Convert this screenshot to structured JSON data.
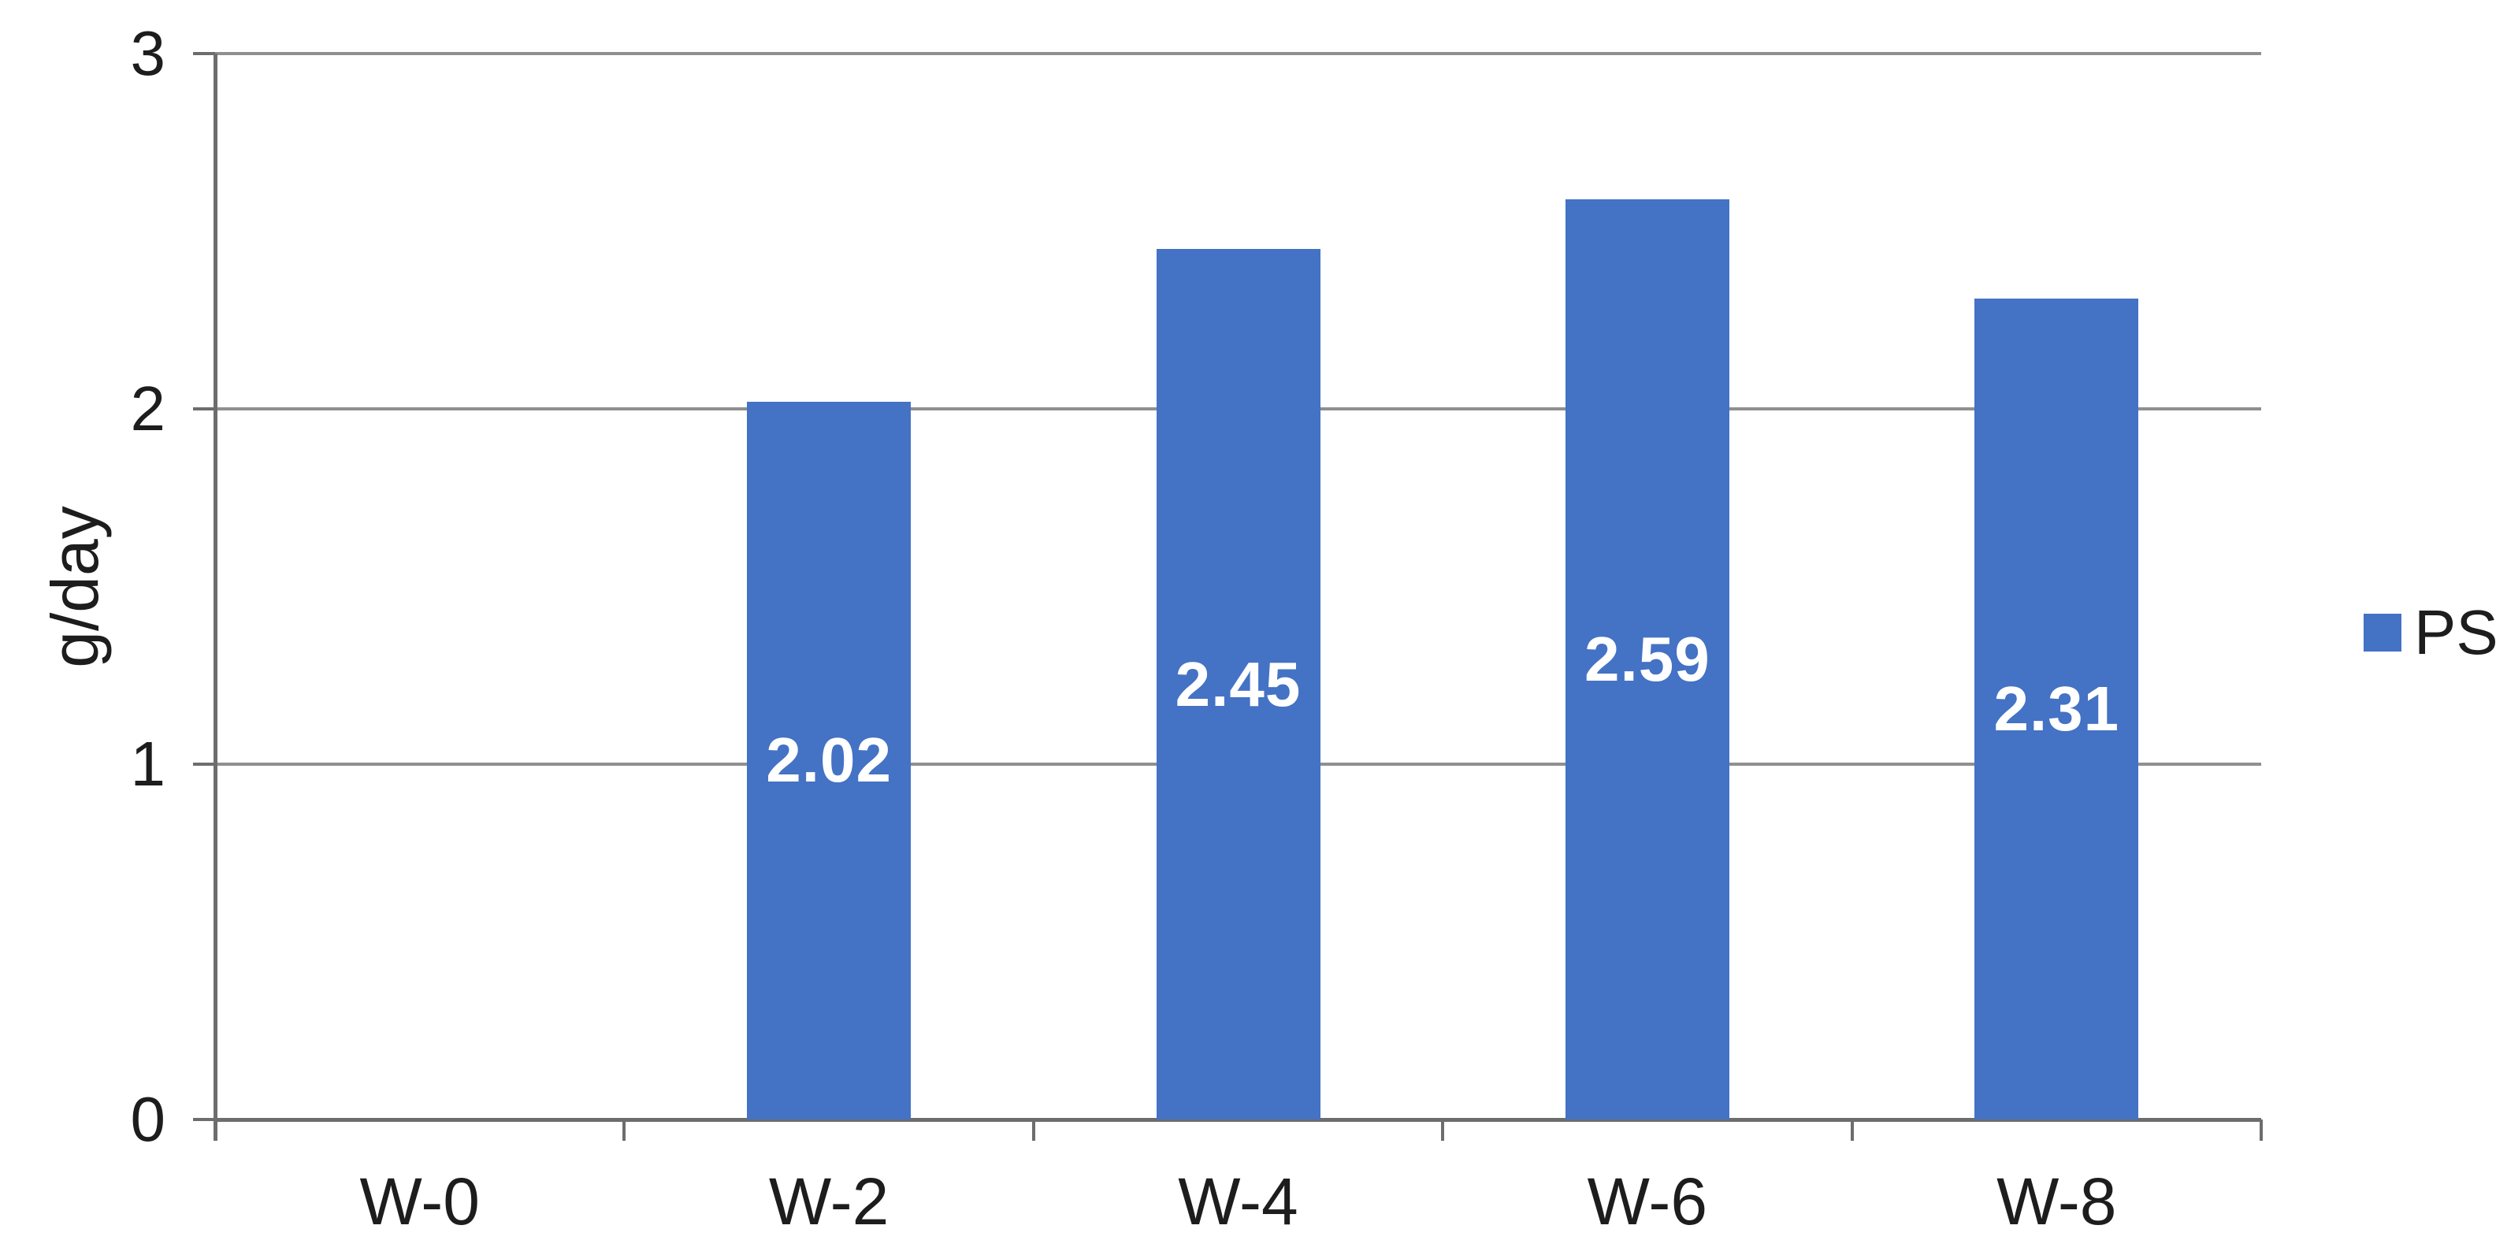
{
  "chart_data": {
    "type": "bar",
    "categories": [
      "W-0",
      "W-2",
      "W-4",
      "W-6",
      "W-8"
    ],
    "series": [
      {
        "name": "PS",
        "values": [
          0,
          2.02,
          2.45,
          2.59,
          2.31
        ]
      }
    ],
    "data_labels": [
      "",
      "2.02",
      "2.45",
      "2.59",
      "2.31"
    ],
    "title": "",
    "xlabel": "",
    "ylabel": "g/day",
    "ylim": [
      0,
      3
    ],
    "yticks": [
      0,
      1,
      2,
      3
    ],
    "grid": "horizontal",
    "legend_position": "right",
    "legend_label": "PS",
    "colors": {
      "bar": "#4472C4",
      "data_label_text": "#FFFFFF",
      "gridline": "#8F8F8F",
      "axis": "#6D6D6D",
      "text": "#1D1D1D",
      "background": "#FFFFFF"
    }
  }
}
